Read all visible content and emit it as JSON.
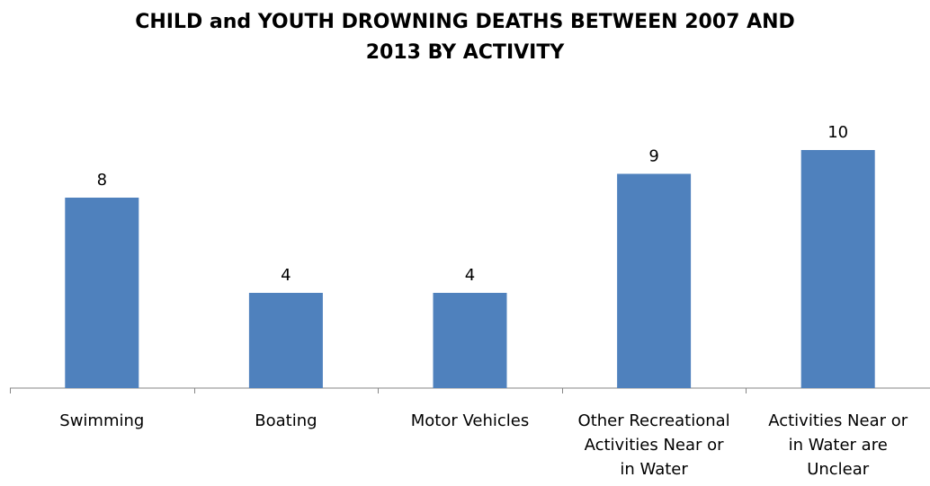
{
  "chart_data": {
    "type": "bar",
    "title_lines": [
      "CHILD and YOUTH DROWNING DEATHS BETWEEN 2007 AND",
      "2013 BY ACTIVITY"
    ],
    "categories": [
      [
        "Swimming"
      ],
      [
        "Boating"
      ],
      [
        "Motor Vehicles"
      ],
      [
        "Other Recreational",
        "Activities Near or",
        "in Water"
      ],
      [
        "Activities Near or",
        "in Water are",
        "Unclear"
      ]
    ],
    "values": [
      8,
      4,
      4,
      9,
      10
    ],
    "data_labels": [
      "8",
      "4",
      "4",
      "9",
      "10"
    ],
    "ylim": [
      0,
      10
    ],
    "grid": false,
    "legend": "none",
    "bar_color": "#4F81BD"
  }
}
